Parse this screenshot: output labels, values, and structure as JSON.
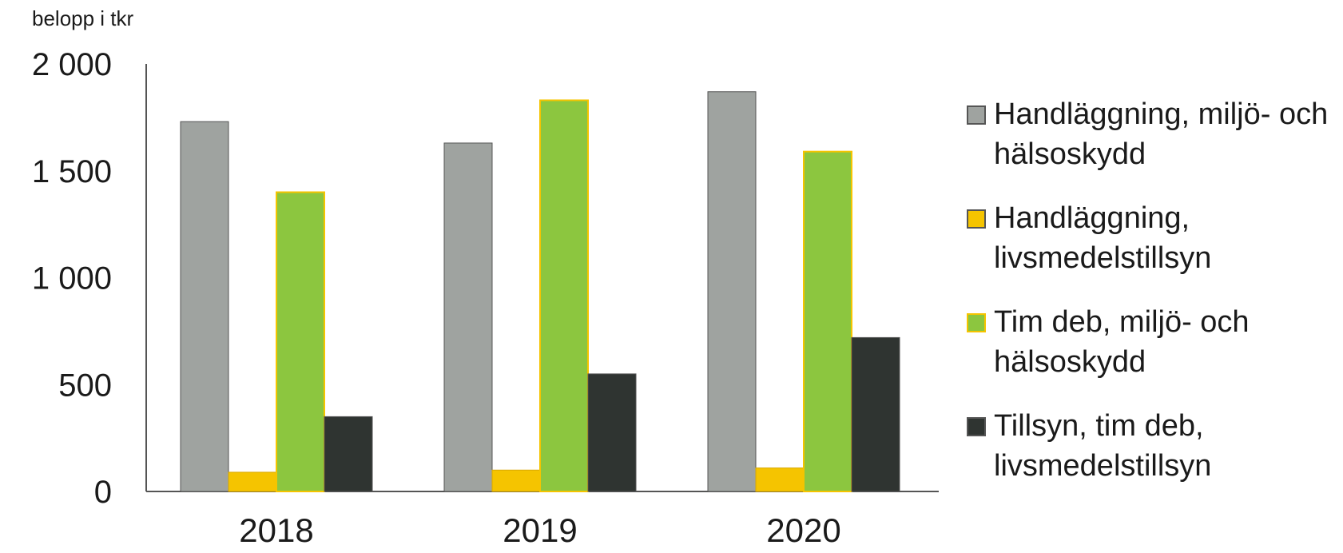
{
  "chart_data": {
    "type": "bar",
    "ylabel": "belopp i tkr",
    "ylim": [
      0,
      2000
    ],
    "yticks": [
      0,
      500,
      1000,
      1500,
      2000
    ],
    "ytick_labels": [
      "0",
      "500",
      "1 000",
      "1 500",
      "2 000"
    ],
    "categories": [
      "2018",
      "2019",
      "2020"
    ],
    "series": [
      {
        "name": "Handläggning, miljö- och hälsoskydd",
        "values": [
          1730,
          1630,
          1870
        ],
        "color": "#9fa3a0"
      },
      {
        "name": "Handläggning, livsmedelstillsyn",
        "values": [
          90,
          100,
          110
        ],
        "color": "#f5c400"
      },
      {
        "name": "Tim deb, miljö- och hälsoskydd",
        "values": [
          1400,
          1830,
          1590
        ],
        "color": "#8cc63f"
      },
      {
        "name": "Tillsyn, tim deb, livsmedelstillsyn",
        "values": [
          350,
          550,
          720
        ],
        "color": "#2f3431"
      }
    ],
    "legend_position": "right",
    "grid": false
  }
}
